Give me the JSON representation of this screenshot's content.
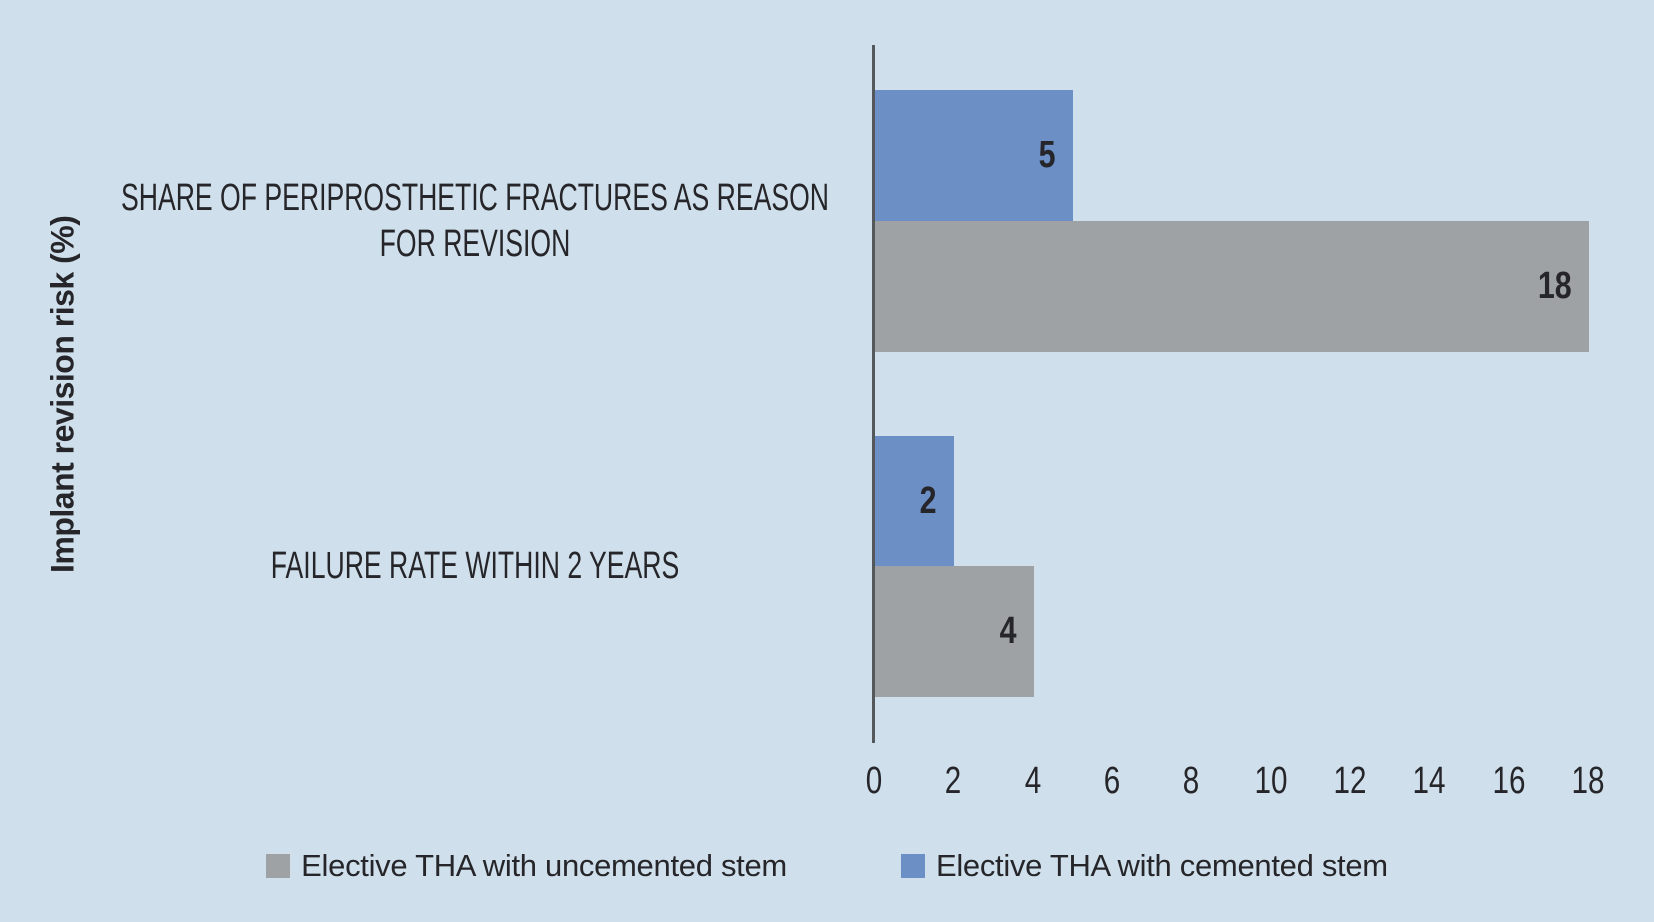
{
  "chart_data": {
    "type": "bar",
    "orientation": "horizontal",
    "ylabel": "Implant revision risk (%)",
    "xlabel": "",
    "categories": [
      "SHARE OF PERIPROSTHETIC FRACTURES AS REASON\nFOR REVISION",
      "FAILURE RATE WITHIN 2 YEARS"
    ],
    "series": [
      {
        "name": "Elective THA with uncemented stem",
        "color": "#9FA2A4",
        "values": [
          18,
          4
        ]
      },
      {
        "name": "Elective THA with cemented stem",
        "color": "#6C8FC5",
        "values": [
          5,
          2
        ]
      }
    ],
    "xlim": [
      0,
      18
    ],
    "x_ticks": [
      "0",
      "2",
      "4",
      "6",
      "8",
      "10",
      "12",
      "14",
      "16",
      "18"
    ],
    "data_labels_shown": true,
    "legend_position": "bottom",
    "grid": false
  },
  "colors": {
    "background": "#CFE0EC",
    "axis_line": "#55585A",
    "text": "#26262A"
  }
}
